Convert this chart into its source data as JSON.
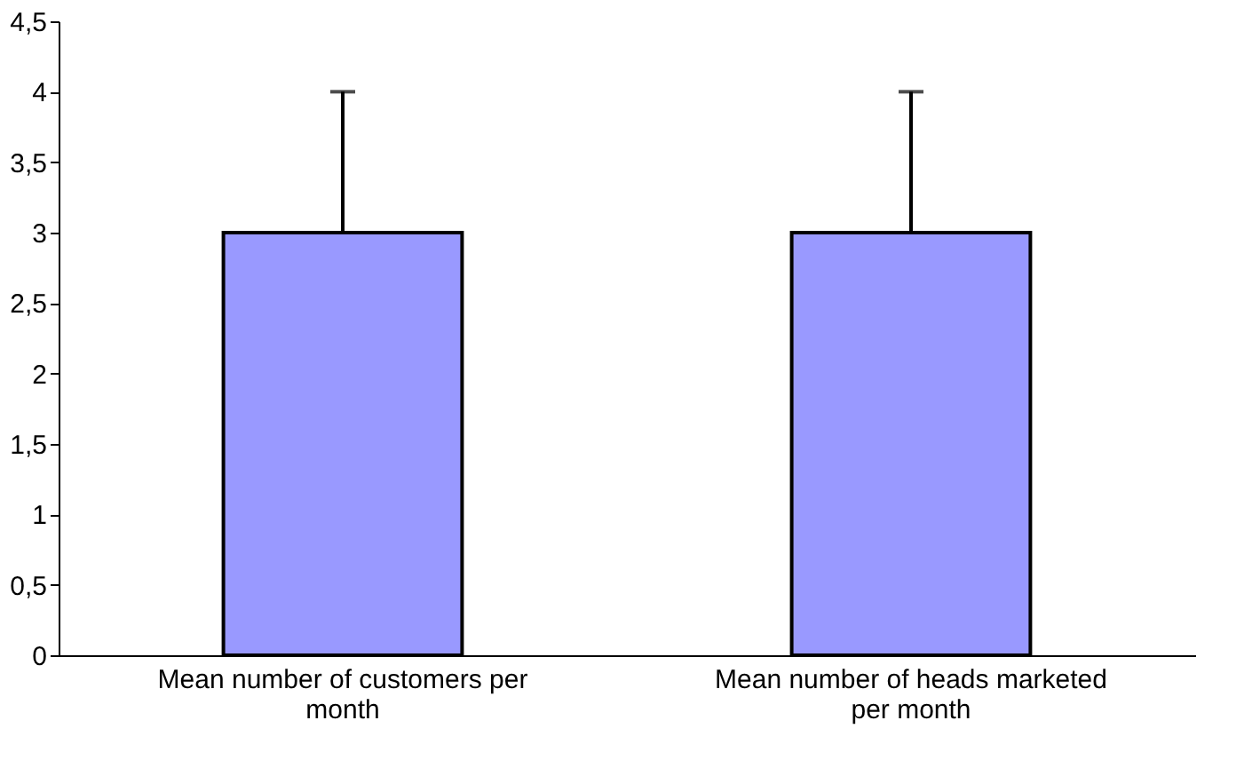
{
  "chart_data": {
    "type": "bar",
    "categories": [
      "Mean number of customers per month",
      "Mean number of heads marketed per month"
    ],
    "values": [
      3,
      3
    ],
    "errors": [
      [
        3,
        4
      ],
      [
        3,
        4
      ]
    ],
    "color": "#9999ff",
    "ylim": [
      0,
      4.5
    ],
    "yticks": [
      0,
      {
        "value": 0.5,
        "label": "0,5"
      },
      1,
      {
        "value": 1.5,
        "label": "1,5"
      },
      2,
      {
        "value": 2.5,
        "label": "2,5"
      },
      3,
      {
        "value": 3.5,
        "label": "3,5"
      },
      4,
      {
        "value": 4.5,
        "label": "4,5"
      }
    ],
    "grid": false
  }
}
